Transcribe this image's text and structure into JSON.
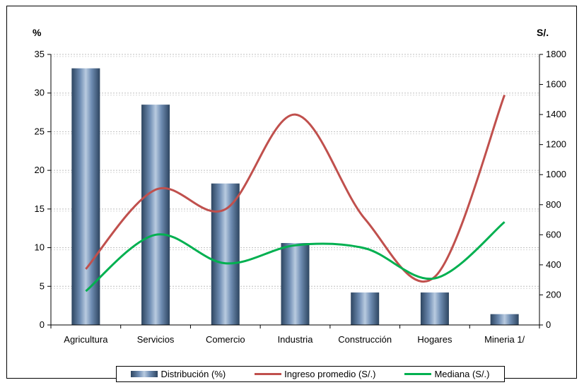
{
  "chart_data": {
    "type": "bar",
    "categories": [
      "Agricultura",
      "Servicios",
      "Comercio",
      "Industria",
      "Construcción",
      "Hogares",
      "Mineria 1/"
    ],
    "y_left": {
      "label": "%",
      "lim": [
        0,
        35
      ],
      "ticks": [
        0,
        5,
        10,
        15,
        20,
        25,
        30,
        35
      ]
    },
    "y_right": {
      "label": "S/.",
      "lim": [
        0,
        1800
      ],
      "ticks": [
        0,
        200,
        400,
        600,
        800,
        1000,
        1200,
        1400,
        1600,
        1800
      ]
    },
    "series": [
      {
        "name": "Distribución (%)",
        "type": "bar",
        "axis": "left",
        "values": [
          33.2,
          28.5,
          18.3,
          10.6,
          4.2,
          4.2,
          1.4
        ]
      },
      {
        "name": "Ingreso promedio (S/.)",
        "type": "line",
        "axis": "right",
        "color": "#c0504d",
        "values": [
          372,
          900,
          770,
          1400,
          705,
          320,
          1530
        ]
      },
      {
        "name": "Mediana (S/.)",
        "type": "line",
        "axis": "right",
        "color": "#00b050",
        "values": [
          225,
          600,
          410,
          530,
          510,
          310,
          685
        ]
      }
    ],
    "grid": true,
    "legend_position": "bottom"
  }
}
